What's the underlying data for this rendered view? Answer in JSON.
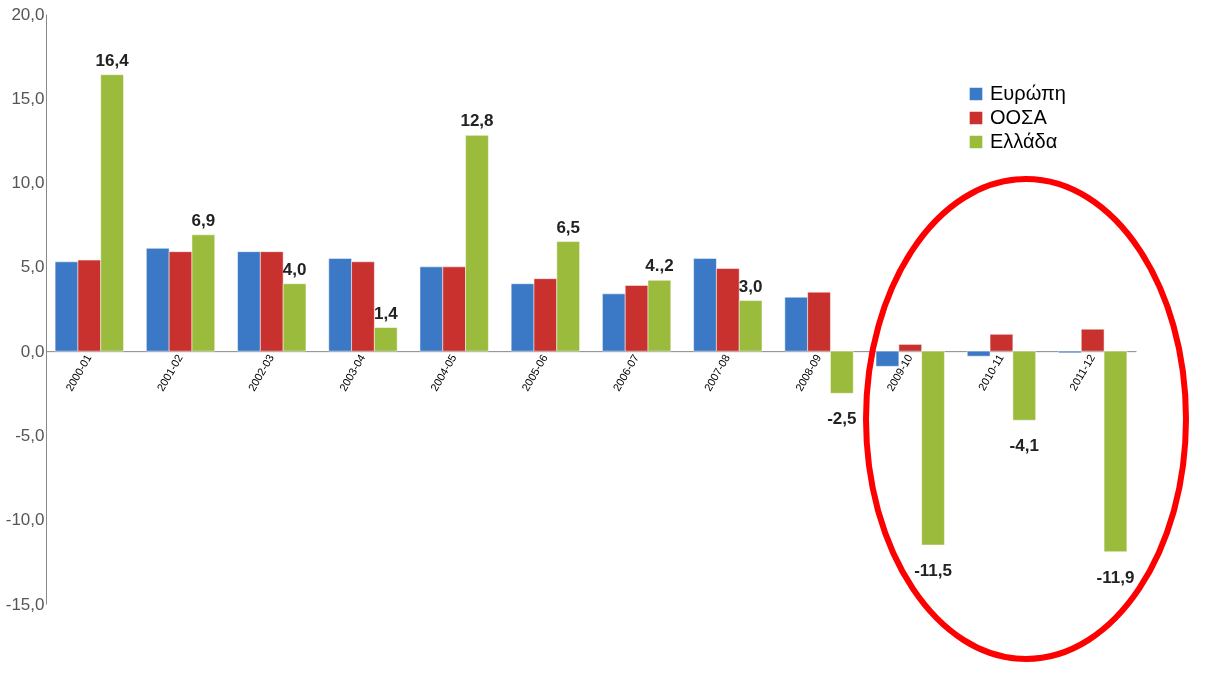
{
  "chart_data": {
    "type": "bar",
    "categories": [
      "2000-01",
      "2001-02",
      "2002-03",
      "2003-04",
      "2004-05",
      "2005-06",
      "2006-07",
      "2007-08",
      "2008-09",
      "2009-10",
      "2010-11",
      "2011-12"
    ],
    "series": [
      {
        "name": "Ευρώπη",
        "color": "#3b78c6",
        "values": [
          5.3,
          6.1,
          5.9,
          5.5,
          5.0,
          4.0,
          3.4,
          5.5,
          3.2,
          -0.9,
          -0.3,
          -0.1
        ]
      },
      {
        "name": "ΟΟΣΑ",
        "color": "#c8312e",
        "values": [
          5.4,
          5.9,
          5.9,
          5.3,
          5.0,
          4.3,
          3.9,
          4.9,
          3.5,
          0.4,
          1.0,
          1.3
        ]
      },
      {
        "name": "Ελλάδα",
        "color": "#9bbb3c",
        "values": [
          16.4,
          6.9,
          4.0,
          1.4,
          12.8,
          6.5,
          4.2,
          3.0,
          -2.5,
          -11.5,
          -4.1,
          -11.9
        ],
        "value_labels": [
          "16,4",
          "6,9",
          "4,0",
          "1,4",
          "12,8",
          "6,5",
          "4.,2",
          "3,0",
          "-2,5",
          "-11,5",
          "-4,1",
          "-11,9"
        ]
      }
    ],
    "ylim": [
      -15,
      20
    ],
    "yticks": [
      {
        "value": -15,
        "label": "-15,0"
      },
      {
        "value": -10,
        "label": "-10,0"
      },
      {
        "value": -5,
        "label": "-5,0"
      },
      {
        "value": 0,
        "label": "0,0"
      },
      {
        "value": 5,
        "label": "5,0"
      },
      {
        "value": 10,
        "label": "10,0"
      },
      {
        "value": 15,
        "label": "15,0"
      },
      {
        "value": 20,
        "label": "20,0"
      }
    ],
    "grid": false,
    "legend": "top right"
  }
}
